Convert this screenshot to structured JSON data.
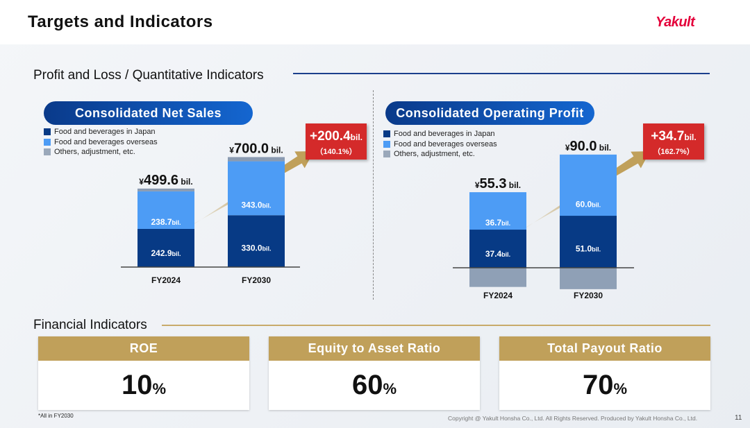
{
  "header": {
    "title": "Targets and Indicators",
    "logo": "Yakult"
  },
  "sections": {
    "pl": "Profit and Loss / Quantitative Indicators",
    "fin": "Financial Indicators"
  },
  "colors": {
    "japan": "#073a85",
    "overseas": "#4d9cf5",
    "others": "#8a9bb2",
    "gold": "#c0a05a",
    "red": "#d42a2a"
  },
  "legend": [
    "Food and beverages in Japan",
    "Food and beverages overseas",
    "Others, adjustment, etc."
  ],
  "chart_data": [
    {
      "type": "bar",
      "stacked": true,
      "title": "Consolidated Net Sales",
      "unit": "bil.",
      "categories": [
        "FY2024",
        "FY2030"
      ],
      "series": [
        {
          "name": "Food and beverages in Japan",
          "values": [
            242.9,
            330.0
          ]
        },
        {
          "name": "Food and beverages overseas",
          "values": [
            238.7,
            343.0
          ]
        },
        {
          "name": "Others, adjustment, etc.",
          "values": [
            18.0,
            27.0
          ]
        }
      ],
      "totals": [
        "¥499.6",
        "¥700.0"
      ],
      "delta": {
        "value": "+200.4",
        "unit": "bil.",
        "pct": "（140.1%）"
      }
    },
    {
      "type": "bar",
      "stacked": true,
      "title": "Consolidated Operating Profit",
      "unit": "bil.",
      "categories": [
        "FY2024",
        "FY2030"
      ],
      "series": [
        {
          "name": "Food and beverages in Japan",
          "values": [
            37.4,
            51.0
          ]
        },
        {
          "name": "Food and beverages overseas",
          "values": [
            36.7,
            60.0
          ]
        },
        {
          "name": "Others, adjustment, etc.",
          "values": [
            -18.8,
            -21.0
          ]
        }
      ],
      "totals": [
        "¥55.3",
        "¥90.0"
      ],
      "delta": {
        "value": "+34.7",
        "unit": "bil.",
        "pct": "（162.7%）"
      }
    }
  ],
  "indicators": [
    {
      "label": "ROE",
      "value": "10",
      "unit": "%"
    },
    {
      "label": "Equity to Asset Ratio",
      "value": "60",
      "unit": "%"
    },
    {
      "label": "Total Payout Ratio",
      "value": "70",
      "unit": "%"
    }
  ],
  "footer": {
    "note": "*All in FY2030",
    "copyright": "Copyright @ Yakult Honsha Co., Ltd. All Rights Reserved. Produced by Yakult Honsha Co., Ltd.",
    "page": "11"
  }
}
